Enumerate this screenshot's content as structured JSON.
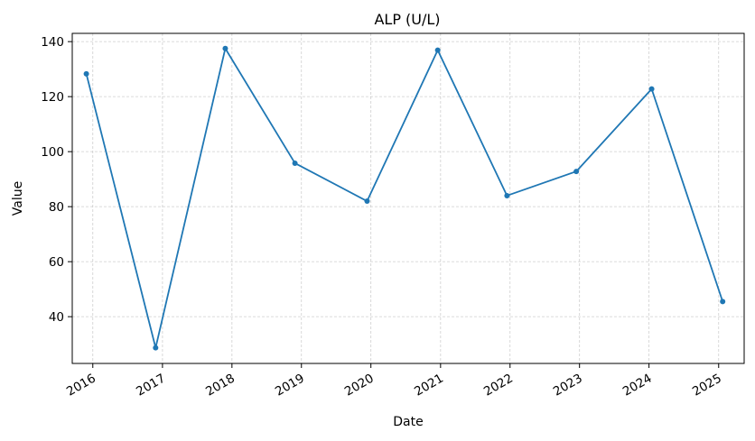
{
  "chart_data": {
    "type": "line",
    "title": "ALP (U/L)",
    "xlabel": "Date",
    "ylabel": "Value",
    "x_ticks": [
      "2016",
      "2017",
      "2018",
      "2019",
      "2020",
      "2021",
      "2022",
      "2023",
      "2024",
      "2025"
    ],
    "y_ticks": [
      40,
      60,
      80,
      100,
      120,
      140
    ],
    "ylim": [
      23,
      143
    ],
    "xlim": [
      "2015-09-15",
      "2025-05-15"
    ],
    "grid": true,
    "series": [
      {
        "color": "#1f77b4",
        "points": [
          {
            "x": "2015-11-28",
            "y": 128.3
          },
          {
            "x": "2016-11-26",
            "y": 28.7
          },
          {
            "x": "2017-11-27",
            "y": 137.5
          },
          {
            "x": "2018-11-28",
            "y": 95.8
          },
          {
            "x": "2019-12-12",
            "y": 82.0
          },
          {
            "x": "2020-12-17",
            "y": 136.9
          },
          {
            "x": "2021-12-16",
            "y": 84.0
          },
          {
            "x": "2022-12-15",
            "y": 92.8
          },
          {
            "x": "2024-01-15",
            "y": 122.8
          },
          {
            "x": "2025-01-22",
            "y": 45.5
          }
        ]
      }
    ]
  }
}
